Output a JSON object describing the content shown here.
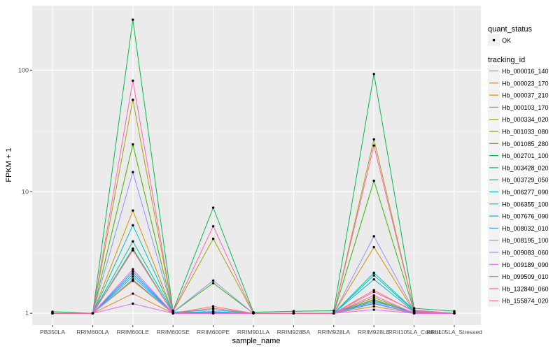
{
  "chart_data": {
    "type": "line",
    "xlabel": "sample_name",
    "ylabel": "FPKM + 1",
    "yscale": "log10",
    "ylim": [
      0.8,
      340
    ],
    "yticks": [
      1,
      10,
      100
    ],
    "ytick_labels": [
      "1",
      "10",
      "100"
    ],
    "grid": true,
    "legend_position": "right",
    "categories": [
      "PB350LA",
      "RRIM600LA",
      "RRIM600LE",
      "RRIM600SE",
      "RRIM600PE",
      "RRIM901LA",
      "RRIM928BA",
      "RRIM928LA",
      "RRIM928LE",
      "RRII105LA_Control",
      "RRII105LA_Stressed"
    ],
    "shape_legend": {
      "title": "quant_status",
      "entries": [
        "OK"
      ]
    },
    "color_legend_title": "tracking_id",
    "series": [
      {
        "name": "Hb_000016_140",
        "color": "#F8766D",
        "values": [
          1,
          1,
          3.3,
          1,
          1.14,
          1,
          1,
          1,
          1.5,
          1.05,
          1
        ]
      },
      {
        "name": "Hb_000023_170",
        "color": "#EA8331",
        "values": [
          1,
          1,
          1.45,
          1,
          1,
          1,
          1,
          1,
          1.14,
          1,
          1
        ]
      },
      {
        "name": "Hb_000037_210",
        "color": "#D89000",
        "values": [
          1,
          1,
          7,
          1.02,
          1.02,
          1,
          1,
          1,
          3.5,
          1.03,
          1
        ]
      },
      {
        "name": "Hb_000103_170",
        "color": "#C09B00",
        "values": [
          1,
          1,
          1.85,
          1,
          1,
          1,
          1,
          1,
          1.3,
          1,
          1
        ]
      },
      {
        "name": "Hb_000334_020",
        "color": "#A3A500",
        "values": [
          1,
          1,
          57,
          1.03,
          4.1,
          1,
          1,
          1,
          27,
          1.06,
          1
        ]
      },
      {
        "name": "Hb_001033_080",
        "color": "#7CAE00",
        "values": [
          1,
          1,
          1.88,
          1,
          1,
          1,
          1,
          1,
          1.35,
          1,
          1
        ]
      },
      {
        "name": "Hb_001085_280",
        "color": "#39B600",
        "values": [
          1,
          1,
          24.5,
          1.02,
          1.77,
          1,
          1,
          1,
          12.3,
          1.04,
          1
        ]
      },
      {
        "name": "Hb_002701_100",
        "color": "#00BB4E",
        "values": [
          1.03,
          1,
          260,
          1.05,
          7.4,
          1.02,
          1.04,
          1.05,
          93,
          1.1,
          1.04
        ]
      },
      {
        "name": "Hb_003428_020",
        "color": "#00BF7D",
        "values": [
          1,
          1,
          3.4,
          1,
          1.02,
          1,
          1,
          1,
          1.25,
          1.02,
          1
        ]
      },
      {
        "name": "Hb_003729_050",
        "color": "#00C1A3",
        "values": [
          1,
          1,
          3.9,
          1.02,
          1.03,
          1,
          1,
          1,
          2.05,
          1.05,
          1
        ]
      },
      {
        "name": "Hb_006277_090",
        "color": "#00BFC4",
        "values": [
          1,
          1,
          5.3,
          1.02,
          1.07,
          1,
          1,
          1,
          2.15,
          1.06,
          1
        ]
      },
      {
        "name": "Hb_006355_100",
        "color": "#00BAE0",
        "values": [
          1,
          1,
          2.0,
          1,
          1.03,
          1,
          1,
          1,
          1.9,
          1.03,
          1
        ]
      },
      {
        "name": "Hb_007676_090",
        "color": "#00B0F6",
        "values": [
          1,
          1,
          2.1,
          1,
          1.02,
          1,
          1,
          1,
          1.2,
          1,
          1
        ]
      },
      {
        "name": "Hb_008032_010",
        "color": "#35A2FF",
        "values": [
          1,
          1,
          2.2,
          1,
          1.02,
          1,
          1,
          1,
          1.28,
          1,
          1
        ]
      },
      {
        "name": "Hb_008195_100",
        "color": "#9590FF",
        "values": [
          1,
          1,
          14.5,
          1.02,
          1.86,
          1,
          1,
          1,
          4.3,
          1.05,
          1
        ]
      },
      {
        "name": "Hb_009083_060",
        "color": "#C77CFF",
        "values": [
          1,
          1,
          1.9,
          1,
          1,
          1,
          1,
          1,
          1.22,
          1,
          1
        ]
      },
      {
        "name": "Hb_009189_090",
        "color": "#E76BF3",
        "values": [
          1,
          1,
          1.2,
          1,
          1,
          1,
          1,
          1,
          1.07,
          1,
          1
        ]
      },
      {
        "name": "Hb_099509_010",
        "color": "#FA62DB",
        "values": [
          1,
          1,
          2.3,
          1,
          1,
          1,
          1,
          1,
          1.4,
          1,
          1
        ]
      },
      {
        "name": "Hb_132840_060",
        "color": "#FF62BC",
        "values": [
          1,
          1,
          82,
          1.03,
          5.2,
          1,
          1,
          1,
          24,
          1.06,
          1
        ]
      },
      {
        "name": "Hb_155874_020",
        "color": "#FF6C91",
        "values": [
          1,
          1,
          3.3,
          1,
          1.1,
          1,
          1,
          1,
          1.55,
          1.03,
          1
        ]
      }
    ]
  }
}
